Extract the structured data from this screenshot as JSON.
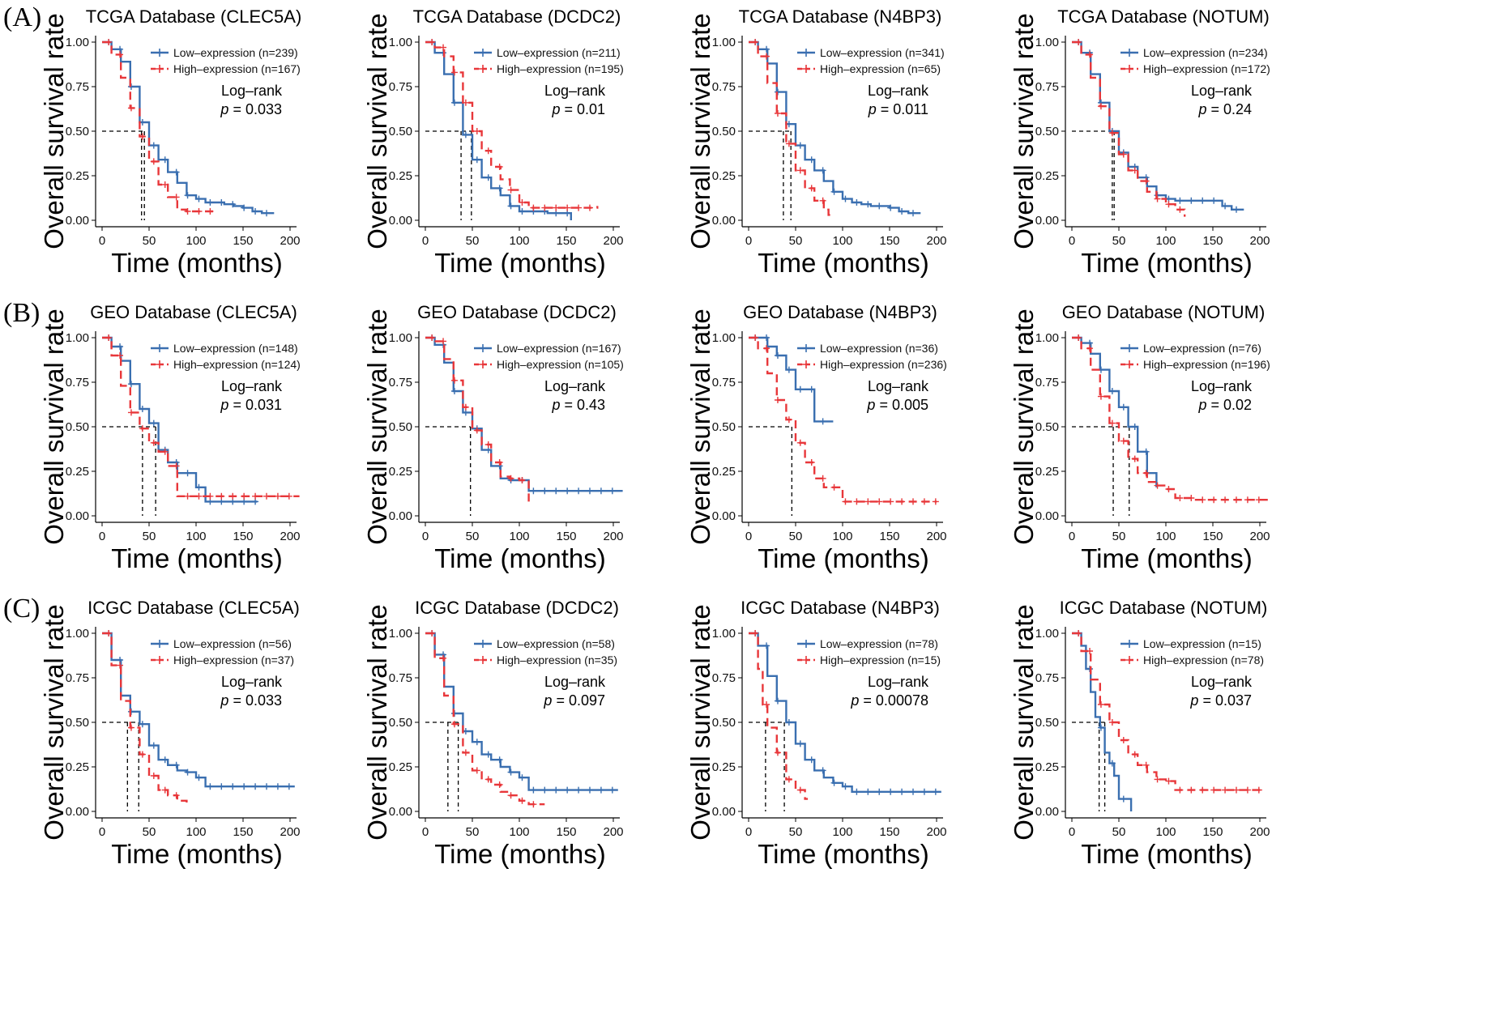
{
  "panels": [
    {
      "label": "(A)"
    },
    {
      "label": "(B)"
    },
    {
      "label": "(C)"
    }
  ],
  "colors": {
    "low": "#3a6fb0",
    "high": "#e8373a",
    "median": "#000000",
    "axis": "#000000"
  },
  "legend_labels": {
    "low": "Low–expression",
    "high": "High–expression"
  },
  "axis_labels": {
    "x": "Time (months)",
    "y": "Overall survival rate"
  },
  "stat_label": "Log–rank",
  "chart_data": [
    {
      "type": "line",
      "title": "TCGA Database (CLEC5A)",
      "n_low": 239,
      "n_high": 167,
      "p": "0.033",
      "xlim": [
        0,
        200
      ],
      "ylim": [
        0,
        1
      ],
      "series": [
        {
          "name": "Low-expression (n=239)",
          "x": [
            0,
            10,
            20,
            30,
            40,
            50,
            60,
            70,
            80,
            90,
            100,
            110,
            120,
            130,
            140,
            150,
            160,
            170,
            183
          ],
          "y": [
            1.0,
            0.96,
            0.89,
            0.75,
            0.55,
            0.42,
            0.34,
            0.27,
            0.21,
            0.14,
            0.12,
            0.1,
            0.1,
            0.09,
            0.08,
            0.07,
            0.05,
            0.04,
            0.04
          ]
        },
        {
          "name": "High-expression (n=167)",
          "x": [
            0,
            10,
            20,
            30,
            40,
            50,
            60,
            70,
            80,
            90,
            100,
            110,
            120
          ],
          "y": [
            1.0,
            0.93,
            0.8,
            0.63,
            0.47,
            0.33,
            0.2,
            0.13,
            0.06,
            0.05,
            0.05,
            0.05,
            0.05
          ]
        }
      ],
      "medians": [
        42,
        45
      ]
    },
    {
      "type": "line",
      "title": "TCGA Database (DCDC2)",
      "n_low": 211,
      "n_high": 195,
      "p": "0.01",
      "xlim": [
        0,
        200
      ],
      "ylim": [
        0,
        1
      ],
      "series": [
        {
          "name": "Low-expression (n=211)",
          "x": [
            0,
            10,
            20,
            30,
            40,
            50,
            60,
            70,
            80,
            90,
            100,
            110,
            120,
            130,
            140,
            150,
            155
          ],
          "y": [
            1.0,
            0.94,
            0.82,
            0.66,
            0.48,
            0.34,
            0.24,
            0.18,
            0.14,
            0.08,
            0.05,
            0.05,
            0.05,
            0.04,
            0.04,
            0.04,
            0.0
          ]
        },
        {
          "name": "High-expression (n=195)",
          "x": [
            0,
            10,
            20,
            30,
            40,
            50,
            60,
            70,
            80,
            90,
            100,
            110,
            120,
            140,
            160,
            183
          ],
          "y": [
            1.0,
            0.97,
            0.92,
            0.83,
            0.66,
            0.5,
            0.39,
            0.3,
            0.23,
            0.17,
            0.1,
            0.07,
            0.07,
            0.07,
            0.07,
            0.08
          ]
        }
      ],
      "medians": [
        38,
        49
      ]
    },
    {
      "type": "line",
      "title": "TCGA Database (N4BP3)",
      "n_low": 341,
      "n_high": 65,
      "p": "0.011",
      "xlim": [
        0,
        200
      ],
      "ylim": [
        0,
        1
      ],
      "series": [
        {
          "name": "Low-expression (n=341)",
          "x": [
            0,
            10,
            20,
            30,
            40,
            50,
            60,
            70,
            80,
            90,
            100,
            110,
            120,
            130,
            140,
            150,
            160,
            170,
            183
          ],
          "y": [
            1.0,
            0.96,
            0.88,
            0.72,
            0.54,
            0.42,
            0.34,
            0.28,
            0.22,
            0.16,
            0.12,
            0.1,
            0.09,
            0.08,
            0.08,
            0.07,
            0.05,
            0.04,
            0.04
          ]
        },
        {
          "name": "High-expression (n=65)",
          "x": [
            0,
            10,
            20,
            30,
            40,
            50,
            60,
            70,
            80,
            85,
            90
          ],
          "y": [
            1.0,
            0.92,
            0.77,
            0.6,
            0.43,
            0.28,
            0.18,
            0.11,
            0.06,
            0.03,
            0.02
          ]
        }
      ],
      "medians": [
        37,
        45
      ]
    },
    {
      "type": "line",
      "title": "TCGA Database (NOTUM)",
      "n_low": 234,
      "n_high": 172,
      "p": "0.24",
      "xlim": [
        0,
        200
      ],
      "ylim": [
        0,
        1
      ],
      "series": [
        {
          "name": "Low-expression (n=234)",
          "x": [
            0,
            10,
            20,
            30,
            40,
            50,
            60,
            70,
            80,
            90,
            100,
            110,
            120,
            130,
            140,
            150,
            160,
            170,
            183
          ],
          "y": [
            1.0,
            0.94,
            0.82,
            0.66,
            0.5,
            0.38,
            0.3,
            0.24,
            0.19,
            0.14,
            0.12,
            0.11,
            0.11,
            0.11,
            0.11,
            0.11,
            0.08,
            0.06,
            0.06
          ]
        },
        {
          "name": "High-expression (n=172)",
          "x": [
            0,
            10,
            20,
            30,
            40,
            50,
            60,
            70,
            80,
            90,
            100,
            110,
            120
          ],
          "y": [
            1.0,
            0.93,
            0.8,
            0.64,
            0.49,
            0.37,
            0.28,
            0.22,
            0.16,
            0.12,
            0.09,
            0.06,
            0.02
          ]
        }
      ],
      "medians": [
        43,
        45
      ]
    },
    {
      "type": "line",
      "title": "GEO Database (CLEC5A)",
      "n_low": 148,
      "n_high": 124,
      "p": "0.031",
      "xlim": [
        0,
        200
      ],
      "ylim": [
        0,
        1
      ],
      "series": [
        {
          "name": "Low-expression (n=148)",
          "x": [
            0,
            10,
            20,
            30,
            40,
            50,
            60,
            70,
            80,
            90,
            100,
            110,
            120,
            140,
            165
          ],
          "y": [
            1.0,
            0.95,
            0.87,
            0.74,
            0.6,
            0.52,
            0.37,
            0.3,
            0.24,
            0.24,
            0.16,
            0.08,
            0.08,
            0.08,
            0.08
          ]
        },
        {
          "name": "High-expression (n=124)",
          "x": [
            0,
            10,
            20,
            30,
            40,
            50,
            60,
            70,
            80,
            100,
            120,
            150,
            210
          ],
          "y": [
            1.0,
            0.9,
            0.73,
            0.58,
            0.49,
            0.41,
            0.36,
            0.28,
            0.11,
            0.11,
            0.11,
            0.11,
            0.11
          ]
        }
      ],
      "medians": [
        43,
        57
      ]
    },
    {
      "type": "line",
      "title": "GEO Database (DCDC2)",
      "n_low": 167,
      "n_high": 105,
      "p": "0.43",
      "xlim": [
        0,
        200
      ],
      "ylim": [
        0,
        1
      ],
      "series": [
        {
          "name": "Low-expression (n=167)",
          "x": [
            0,
            10,
            20,
            30,
            40,
            50,
            60,
            70,
            80,
            90,
            100,
            110,
            130,
            160,
            210
          ],
          "y": [
            1.0,
            0.96,
            0.86,
            0.7,
            0.58,
            0.49,
            0.37,
            0.28,
            0.21,
            0.2,
            0.2,
            0.14,
            0.14,
            0.14,
            0.14
          ]
        },
        {
          "name": "High-expression (n=105)",
          "x": [
            0,
            10,
            20,
            30,
            40,
            50,
            60,
            70,
            80,
            90,
            100,
            108,
            110
          ],
          "y": [
            1.0,
            0.98,
            0.88,
            0.76,
            0.61,
            0.48,
            0.4,
            0.3,
            0.22,
            0.21,
            0.2,
            0.2,
            0.06
          ]
        }
      ],
      "medians": [
        48
      ]
    },
    {
      "type": "line",
      "title": "GEO Database (N4BP3)",
      "n_low": 36,
      "n_high": 236,
      "p": "0.005",
      "xlim": [
        0,
        200
      ],
      "ylim": [
        0,
        1
      ],
      "series": [
        {
          "name": "Low-expression (n=36)",
          "x": [
            0,
            20,
            30,
            40,
            50,
            60,
            70,
            80,
            90
          ],
          "y": [
            1.0,
            0.95,
            0.9,
            0.82,
            0.71,
            0.71,
            0.53,
            0.53,
            0.53
          ]
        },
        {
          "name": "High-expression (n=236)",
          "x": [
            0,
            10,
            20,
            30,
            40,
            50,
            60,
            70,
            80,
            100,
            120,
            150,
            200
          ],
          "y": [
            1.0,
            0.94,
            0.8,
            0.65,
            0.54,
            0.41,
            0.3,
            0.21,
            0.16,
            0.08,
            0.08,
            0.08,
            0.08
          ]
        }
      ],
      "medians": [
        46
      ]
    },
    {
      "type": "line",
      "title": "GEO Database (NOTUM)",
      "n_low": 76,
      "n_high": 196,
      "p": "0.02",
      "xlim": [
        0,
        200
      ],
      "ylim": [
        0,
        1
      ],
      "series": [
        {
          "name": "Low-expression (n=76)",
          "x": [
            0,
            10,
            20,
            30,
            40,
            50,
            60,
            70,
            80,
            90
          ],
          "y": [
            1.0,
            0.97,
            0.91,
            0.82,
            0.7,
            0.61,
            0.5,
            0.36,
            0.24,
            0.16
          ]
        },
        {
          "name": "High-expression (n=196)",
          "x": [
            0,
            10,
            20,
            30,
            40,
            50,
            60,
            70,
            80,
            90,
            100,
            110,
            130,
            170,
            210
          ],
          "y": [
            1.0,
            0.94,
            0.82,
            0.67,
            0.52,
            0.42,
            0.32,
            0.24,
            0.19,
            0.17,
            0.15,
            0.1,
            0.09,
            0.09,
            0.09
          ]
        }
      ],
      "medians": [
        44,
        61
      ]
    },
    {
      "type": "line",
      "title": "ICGC Database (CLEC5A)",
      "n_low": 56,
      "n_high": 37,
      "p": "0.033",
      "xlim": [
        0,
        200
      ],
      "ylim": [
        0,
        1
      ],
      "series": [
        {
          "name": "Low-expression (n=56)",
          "x": [
            0,
            10,
            20,
            30,
            40,
            50,
            60,
            70,
            80,
            90,
            100,
            110,
            130,
            160,
            205
          ],
          "y": [
            1.0,
            0.85,
            0.65,
            0.56,
            0.49,
            0.37,
            0.29,
            0.26,
            0.23,
            0.22,
            0.19,
            0.14,
            0.14,
            0.14,
            0.14
          ]
        },
        {
          "name": "High-expression (n=37)",
          "x": [
            0,
            10,
            20,
            30,
            40,
            50,
            60,
            70,
            80,
            90
          ],
          "y": [
            1.0,
            0.82,
            0.62,
            0.47,
            0.32,
            0.2,
            0.12,
            0.09,
            0.06,
            0.05
          ]
        }
      ],
      "medians": [
        27,
        39
      ]
    },
    {
      "type": "line",
      "title": "ICGC Database (DCDC2)",
      "n_low": 58,
      "n_high": 35,
      "p": "0.097",
      "xlim": [
        0,
        200
      ],
      "ylim": [
        0,
        1
      ],
      "series": [
        {
          "name": "Low-expression (n=58)",
          "x": [
            0,
            10,
            20,
            30,
            40,
            50,
            60,
            70,
            80,
            90,
            100,
            110,
            130,
            160,
            205
          ],
          "y": [
            1.0,
            0.88,
            0.7,
            0.55,
            0.45,
            0.39,
            0.32,
            0.29,
            0.25,
            0.22,
            0.19,
            0.12,
            0.12,
            0.12,
            0.12
          ]
        },
        {
          "name": "High-expression (n=35)",
          "x": [
            0,
            10,
            20,
            30,
            40,
            50,
            60,
            70,
            80,
            90,
            100,
            110,
            120,
            127
          ],
          "y": [
            1.0,
            0.86,
            0.65,
            0.49,
            0.33,
            0.23,
            0.18,
            0.15,
            0.11,
            0.09,
            0.06,
            0.04,
            0.04,
            0.04
          ]
        }
      ],
      "medians": [
        24,
        35
      ]
    },
    {
      "type": "line",
      "title": "ICGC Database (N4BP3)",
      "n_low": 78,
      "n_high": 15,
      "p": "0.00078",
      "xlim": [
        0,
        200
      ],
      "ylim": [
        0,
        1
      ],
      "series": [
        {
          "name": "Low-expression (n=78)",
          "x": [
            0,
            10,
            20,
            30,
            40,
            50,
            60,
            70,
            80,
            90,
            100,
            110,
            130,
            160,
            205
          ],
          "y": [
            1.0,
            0.93,
            0.76,
            0.62,
            0.5,
            0.38,
            0.29,
            0.23,
            0.19,
            0.16,
            0.14,
            0.11,
            0.11,
            0.11,
            0.11
          ]
        },
        {
          "name": "High-expression (n=15)",
          "x": [
            0,
            5,
            10,
            15,
            20,
            30,
            40,
            50,
            60,
            63
          ],
          "y": [
            1.0,
            1.0,
            0.8,
            0.6,
            0.47,
            0.33,
            0.18,
            0.12,
            0.07,
            0.07
          ]
        }
      ],
      "medians": [
        18,
        38
      ]
    },
    {
      "type": "line",
      "title": "ICGC Database (NOTUM)",
      "n_low": 15,
      "n_high": 78,
      "p": "0.037",
      "xlim": [
        0,
        200
      ],
      "ylim": [
        0,
        1
      ],
      "series": [
        {
          "name": "Low-expression (n=15)",
          "x": [
            0,
            5,
            10,
            15,
            20,
            25,
            30,
            35,
            40,
            45,
            50,
            60,
            63
          ],
          "y": [
            1.0,
            1.0,
            0.93,
            0.8,
            0.67,
            0.53,
            0.47,
            0.33,
            0.27,
            0.2,
            0.07,
            0.07,
            0.0
          ]
        },
        {
          "name": "High-expression (n=78)",
          "x": [
            0,
            10,
            20,
            30,
            40,
            50,
            60,
            70,
            80,
            90,
            100,
            110,
            120,
            140,
            170,
            205
          ],
          "y": [
            1.0,
            0.9,
            0.74,
            0.6,
            0.5,
            0.4,
            0.32,
            0.26,
            0.22,
            0.18,
            0.17,
            0.12,
            0.12,
            0.12,
            0.12,
            0.12
          ]
        }
      ],
      "medians": [
        29,
        35
      ]
    }
  ]
}
